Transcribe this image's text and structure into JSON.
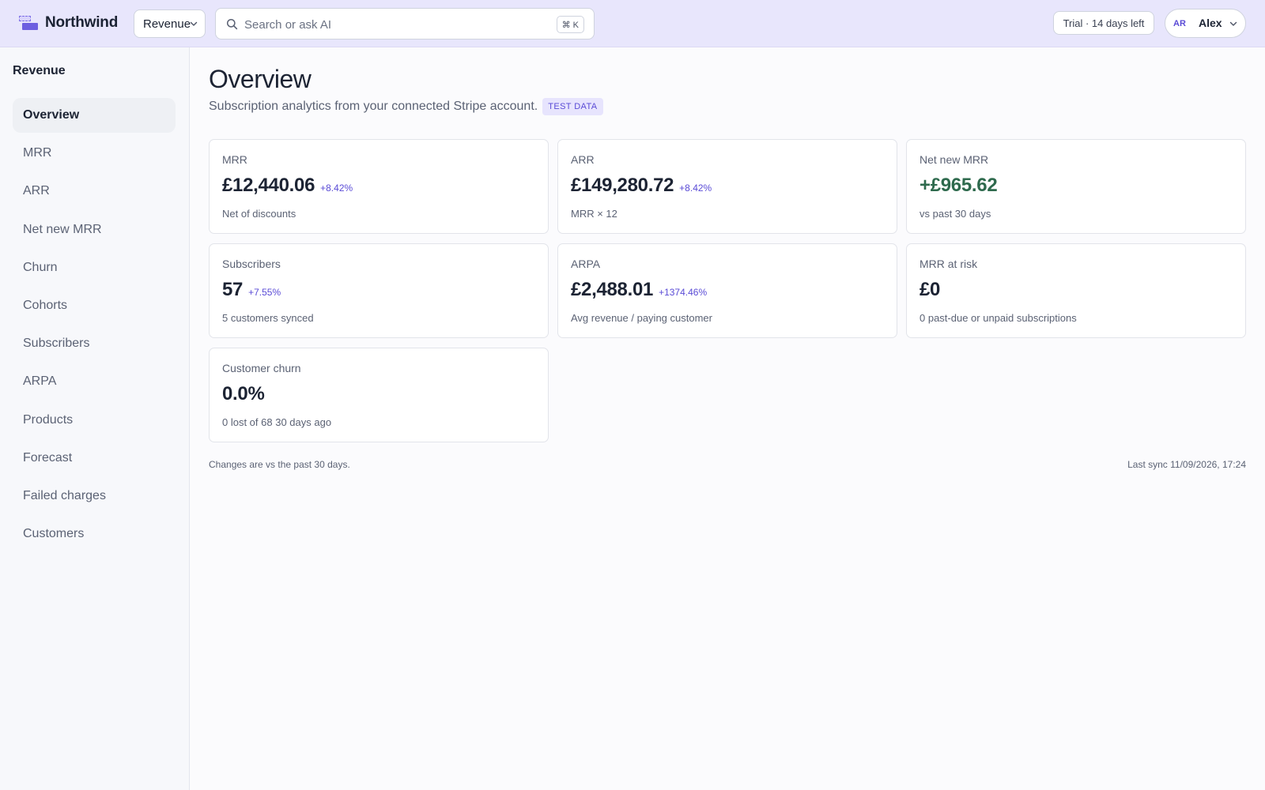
{
  "app": {
    "brand": "Northwind",
    "workspace": "Revenue",
    "search": {
      "placeholder": "Search or ask AI",
      "shortcut": "⌘ K"
    },
    "trial": "Trial · 14 days left",
    "user": {
      "initials": "AR",
      "name": "Alex"
    },
    "colors": {
      "topbar": "#e8e6fc",
      "accent": "#5a4bd6",
      "positive": "#2e6a4d"
    }
  },
  "sidebar": {
    "heading": "Revenue",
    "items": [
      {
        "label": "Overview",
        "active": true
      },
      {
        "label": "MRR"
      },
      {
        "label": "ARR"
      },
      {
        "label": "Net new MRR"
      },
      {
        "label": "Churn"
      },
      {
        "label": "Cohorts"
      },
      {
        "label": "Subscribers"
      },
      {
        "label": "ARPA"
      },
      {
        "label": "Products"
      },
      {
        "label": "Forecast"
      },
      {
        "label": "Failed charges"
      },
      {
        "label": "Customers"
      }
    ]
  },
  "main": {
    "title": "Overview",
    "subtitle": "Subscription analytics from your connected Stripe account.",
    "badge": "TEST DATA",
    "cards": [
      {
        "label": "MRR",
        "value": "£12,440.06",
        "delta": "+8.42%",
        "note": "Net of discounts"
      },
      {
        "label": "ARR",
        "value": "£149,280.72",
        "delta": "+8.42%",
        "note": "MRR × 12"
      },
      {
        "label": "Net new MRR",
        "value": "+£965.62",
        "delta": "",
        "note": "vs past 30 days"
      },
      {
        "label": "Subscribers",
        "value": "57",
        "delta": "+7.55%",
        "note": "5 customers synced"
      },
      {
        "label": "ARPA",
        "value": "£2,488.01",
        "delta": "+1374.46%",
        "note": "Avg revenue / paying customer"
      },
      {
        "label": "MRR at risk",
        "value": "£0",
        "delta": "",
        "note": "0 past-due or unpaid subscriptions"
      },
      {
        "label": "Customer churn",
        "value": "0.0%",
        "delta": "",
        "note": "0 lost of 68 30 days ago"
      }
    ],
    "footer_left": "Changes are vs the past 30 days.",
    "footer_right": "Last sync 11/09/2026, 17:24"
  }
}
